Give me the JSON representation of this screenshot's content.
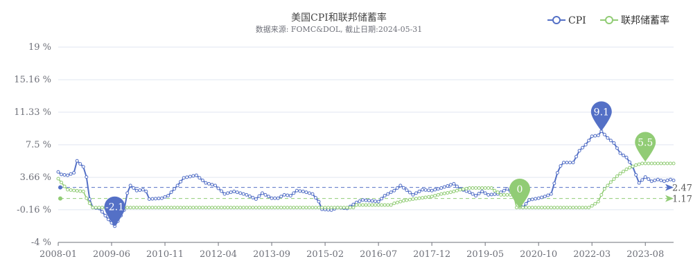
{
  "chart_data": {
    "type": "line",
    "title": "美国CPI和联邦储蓄率",
    "subtitle": "数据来源: FOMC&DOL, 截止日期:2024-05-31",
    "ylim": [
      -4,
      19
    ],
    "y_ticks": [
      "19 %",
      "15.16 %",
      "11.33 %",
      "7.5 %",
      "3.66 %",
      "-0.16 %",
      "-4 %"
    ],
    "y_tick_values": [
      19,
      15.16,
      11.33,
      7.5,
      3.66,
      -0.16,
      -4
    ],
    "x_ticks": [
      "2008-01",
      "2009-06",
      "2010-11",
      "2012-04",
      "2013-09",
      "2015-02",
      "2016-07",
      "2017-12",
      "2019-05",
      "2020-10",
      "2022-03",
      "2023-08"
    ],
    "x_start": "2008-01",
    "x_end": "2024-05",
    "grid": true,
    "legend_position": "top-right",
    "series": [
      {
        "name": "CPI",
        "color": "#5470c6",
        "anchors": [
          [
            "2008-01",
            4.3
          ],
          [
            "2008-02",
            4.0
          ],
          [
            "2008-04",
            3.9
          ],
          [
            "2008-06",
            4.2
          ],
          [
            "2008-07",
            5.6
          ],
          [
            "2008-09",
            4.9
          ],
          [
            "2008-10",
            3.7
          ],
          [
            "2008-11",
            1.1
          ],
          [
            "2008-12",
            0.1
          ],
          [
            "2009-02",
            0.0
          ],
          [
            "2009-03",
            -0.4
          ],
          [
            "2009-05",
            -1.3
          ],
          [
            "2009-07",
            -2.1
          ],
          [
            "2009-08",
            -1.5
          ],
          [
            "2009-10",
            -0.2
          ],
          [
            "2009-11",
            1.8
          ],
          [
            "2009-12",
            2.7
          ],
          [
            "2010-02",
            2.1
          ],
          [
            "2010-04",
            2.2
          ],
          [
            "2010-05",
            2.0
          ],
          [
            "2010-06",
            1.1
          ],
          [
            "2010-10",
            1.2
          ],
          [
            "2010-12",
            1.5
          ],
          [
            "2011-03",
            2.7
          ],
          [
            "2011-05",
            3.6
          ],
          [
            "2011-09",
            3.9
          ],
          [
            "2011-12",
            3.0
          ],
          [
            "2012-03",
            2.7
          ],
          [
            "2012-06",
            1.7
          ],
          [
            "2012-09",
            2.0
          ],
          [
            "2012-11",
            1.8
          ],
          [
            "2013-01",
            1.6
          ],
          [
            "2013-04",
            1.1
          ],
          [
            "2013-06",
            1.8
          ],
          [
            "2013-09",
            1.2
          ],
          [
            "2013-11",
            1.2
          ],
          [
            "2014-01",
            1.6
          ],
          [
            "2014-03",
            1.5
          ],
          [
            "2014-05",
            2.1
          ],
          [
            "2014-07",
            2.0
          ],
          [
            "2014-10",
            1.7
          ],
          [
            "2014-12",
            0.8
          ],
          [
            "2015-01",
            -0.1
          ],
          [
            "2015-04",
            -0.2
          ],
          [
            "2015-06",
            0.1
          ],
          [
            "2015-09",
            0.0
          ],
          [
            "2015-12",
            0.7
          ],
          [
            "2016-02",
            1.0
          ],
          [
            "2016-07",
            0.8
          ],
          [
            "2016-09",
            1.5
          ],
          [
            "2016-12",
            2.1
          ],
          [
            "2017-02",
            2.7
          ],
          [
            "2017-06",
            1.6
          ],
          [
            "2017-09",
            2.2
          ],
          [
            "2017-12",
            2.1
          ],
          [
            "2018-03",
            2.4
          ],
          [
            "2018-07",
            2.9
          ],
          [
            "2018-09",
            2.3
          ],
          [
            "2018-12",
            1.9
          ],
          [
            "2019-02",
            1.5
          ],
          [
            "2019-04",
            2.0
          ],
          [
            "2019-06",
            1.6
          ],
          [
            "2019-09",
            1.7
          ],
          [
            "2019-12",
            2.3
          ],
          [
            "2020-03",
            1.5
          ],
          [
            "2020-05",
            0.1
          ],
          [
            "2020-07",
            1.0
          ],
          [
            "2020-10",
            1.2
          ],
          [
            "2020-12",
            1.4
          ],
          [
            "2021-02",
            1.7
          ],
          [
            "2021-04",
            4.2
          ],
          [
            "2021-05",
            5.0
          ],
          [
            "2021-06",
            5.4
          ],
          [
            "2021-09",
            5.4
          ],
          [
            "2021-11",
            6.8
          ],
          [
            "2022-01",
            7.5
          ],
          [
            "2022-03",
            8.5
          ],
          [
            "2022-05",
            8.6
          ],
          [
            "2022-06",
            9.1
          ],
          [
            "2022-08",
            8.3
          ],
          [
            "2022-10",
            7.7
          ],
          [
            "2022-12",
            6.5
          ],
          [
            "2023-02",
            6.0
          ],
          [
            "2023-04",
            4.9
          ],
          [
            "2023-06",
            3.0
          ],
          [
            "2023-08",
            3.7
          ],
          [
            "2023-10",
            3.2
          ],
          [
            "2023-12",
            3.4
          ],
          [
            "2024-02",
            3.2
          ],
          [
            "2024-04",
            3.4
          ],
          [
            "2024-05",
            3.3
          ]
        ],
        "markline_value": 2.47,
        "markline_label": "2.47",
        "pins": [
          {
            "label": "-2.1",
            "x": "2009-07",
            "y": -2.1
          },
          {
            "label": "9.1",
            "x": "2022-06",
            "y": 9.1
          }
        ]
      },
      {
        "name": "联邦储蓄率",
        "color": "#91cc75",
        "anchors": [
          [
            "2008-01",
            3.5
          ],
          [
            "2008-03",
            2.6
          ],
          [
            "2008-04",
            2.2
          ],
          [
            "2008-09",
            2.0
          ],
          [
            "2008-10",
            1.2
          ],
          [
            "2008-11",
            0.6
          ],
          [
            "2008-12",
            0.1
          ],
          [
            "2015-11",
            0.1
          ],
          [
            "2015-12",
            0.4
          ],
          [
            "2016-11",
            0.4
          ],
          [
            "2016-12",
            0.6
          ],
          [
            "2017-03",
            0.9
          ],
          [
            "2017-06",
            1.1
          ],
          [
            "2017-12",
            1.4
          ],
          [
            "2018-03",
            1.7
          ],
          [
            "2018-06",
            1.9
          ],
          [
            "2018-09",
            2.2
          ],
          [
            "2018-12",
            2.4
          ],
          [
            "2019-07",
            2.4
          ],
          [
            "2019-08",
            2.1
          ],
          [
            "2019-09",
            1.9
          ],
          [
            "2019-10",
            1.6
          ],
          [
            "2020-02",
            1.6
          ],
          [
            "2020-03",
            0.1
          ],
          [
            "2022-02",
            0.1
          ],
          [
            "2022-03",
            0.3
          ],
          [
            "2022-05",
            0.8
          ],
          [
            "2022-06",
            1.6
          ],
          [
            "2022-07",
            2.3
          ],
          [
            "2022-09",
            3.1
          ],
          [
            "2022-11",
            3.8
          ],
          [
            "2022-12",
            4.1
          ],
          [
            "2023-02",
            4.6
          ],
          [
            "2023-03",
            4.8
          ],
          [
            "2023-05",
            5.1
          ],
          [
            "2023-07",
            5.3
          ],
          [
            "2024-05",
            5.3
          ]
        ],
        "markline_value": 1.17,
        "markline_label": "1.17",
        "pins": [
          {
            "label": "0",
            "x": "2020-04",
            "y": 0
          },
          {
            "label": "5.5",
            "x": "2023-08",
            "y": 5.5
          }
        ]
      }
    ]
  }
}
